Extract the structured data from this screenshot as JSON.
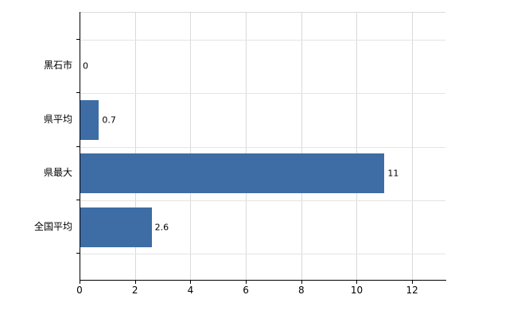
{
  "chart_data": {
    "type": "bar",
    "orientation": "horizontal",
    "title": "",
    "xlabel": "",
    "ylabel": "",
    "categories": [
      "黒石市",
      "県平均",
      "県最大",
      "全国平均"
    ],
    "values": [
      0,
      0.7,
      11,
      2.6
    ],
    "value_labels": [
      "0",
      "0.7",
      "11",
      "2.6"
    ],
    "xlim": [
      0,
      13.2
    ],
    "xticks": [
      0,
      2,
      4,
      6,
      8,
      10,
      12
    ],
    "grid": "on",
    "legend": "none",
    "bar_color": "#3e6da5",
    "grid_color": "#d9d9d9",
    "axis_color": "#000000",
    "background_color": "#ffffff"
  }
}
